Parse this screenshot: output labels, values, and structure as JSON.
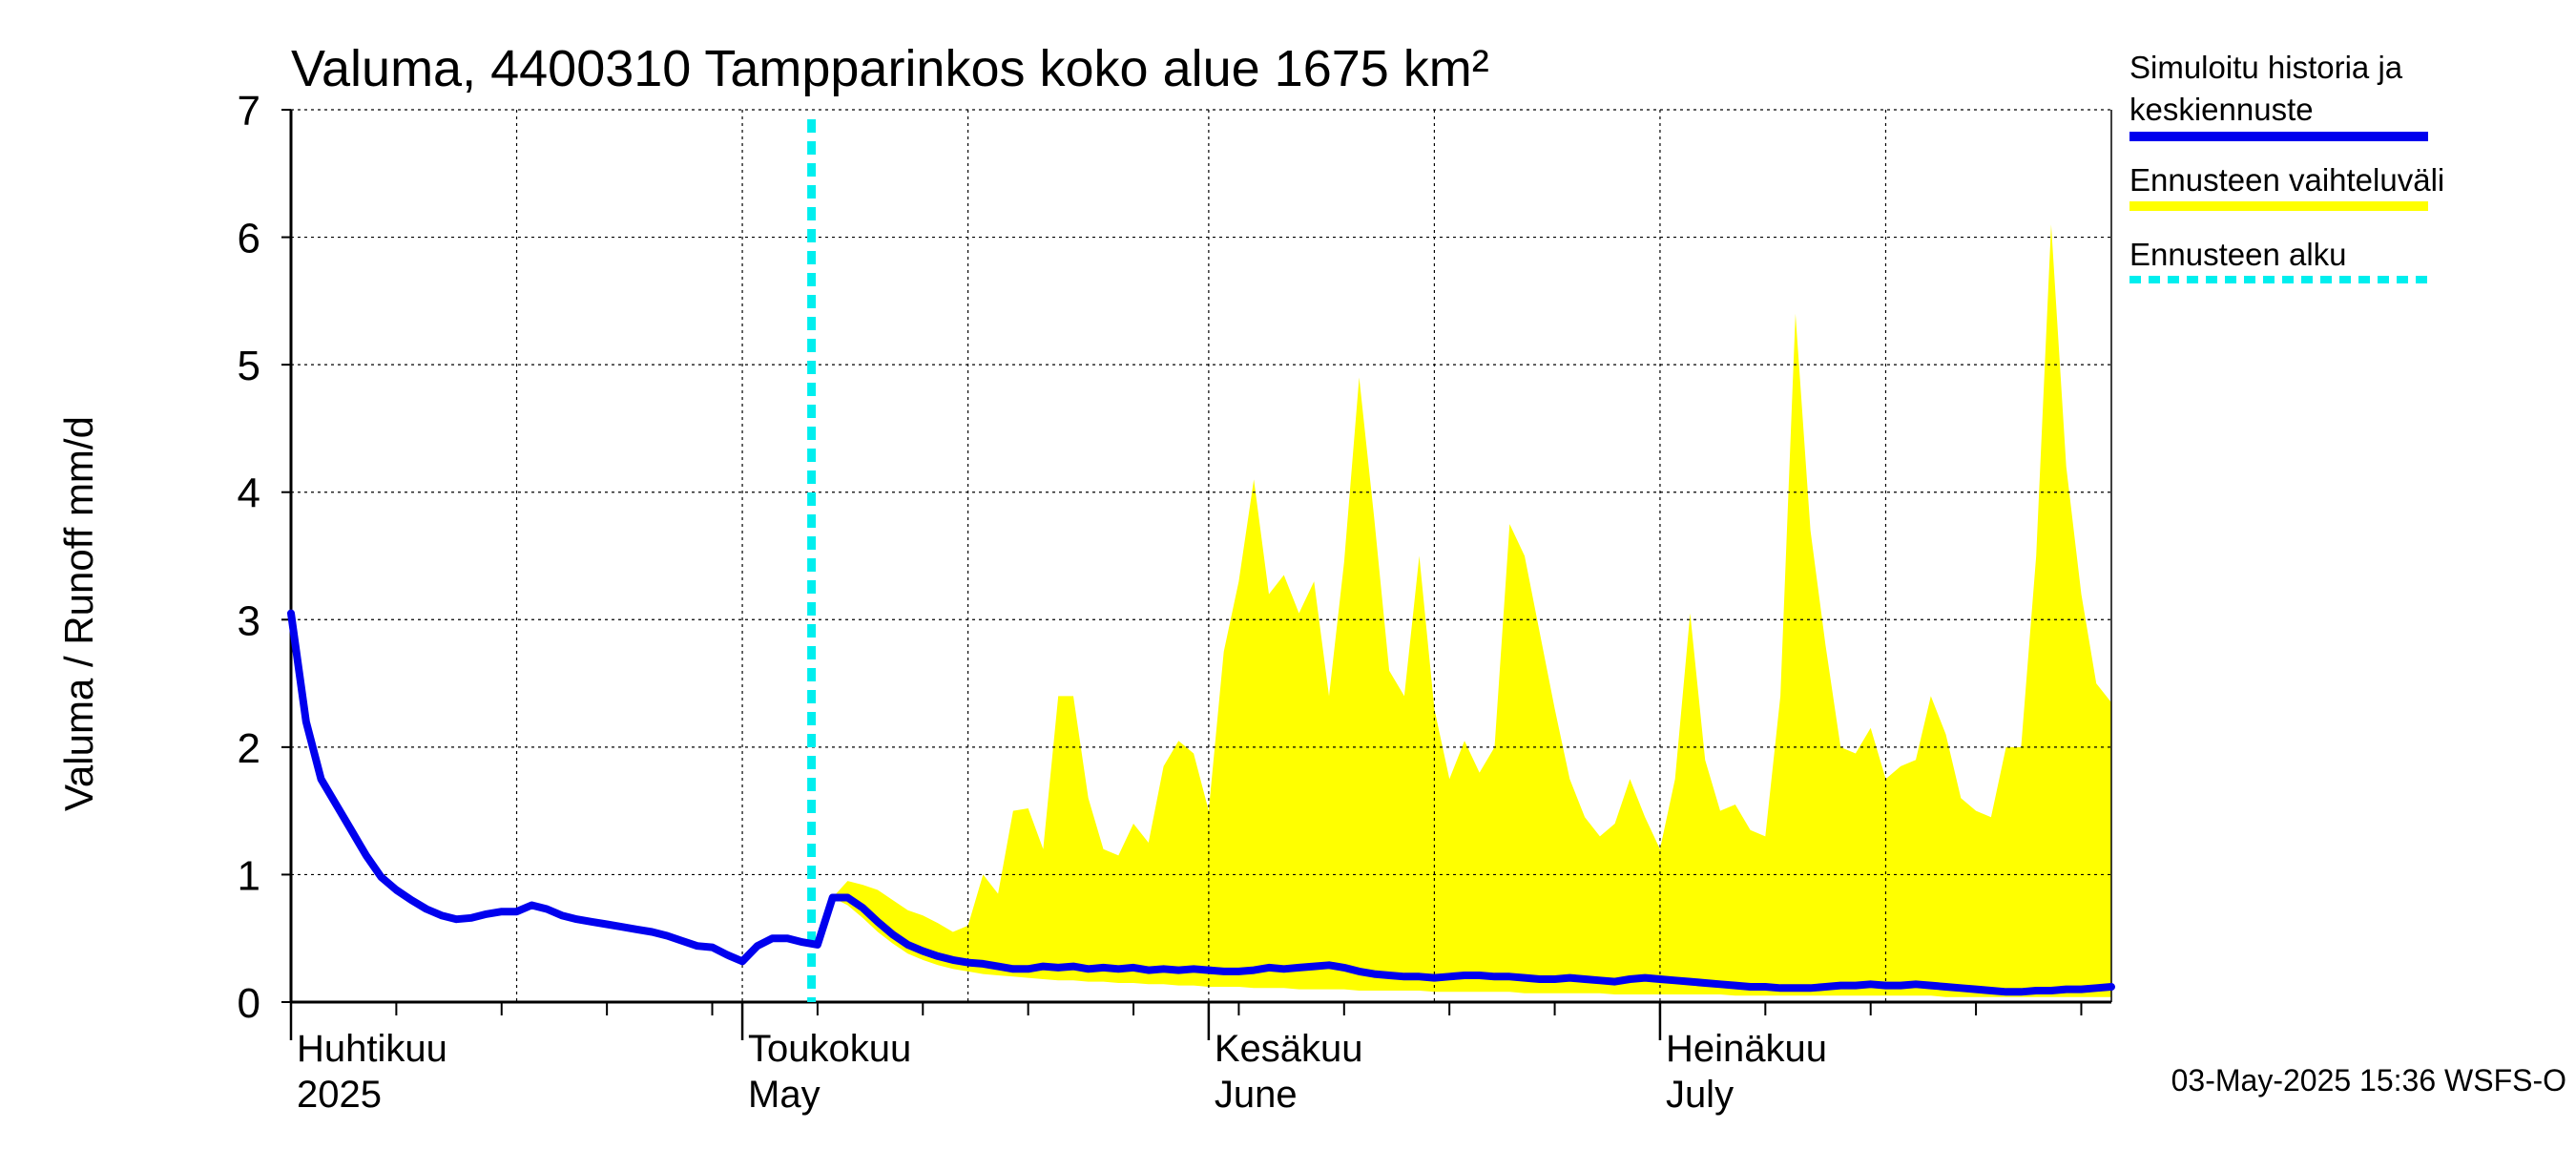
{
  "chart_data": {
    "type": "area",
    "title": "Valuma, 4400310 Tampparinkos koko alue 1675 km²",
    "ylabel": "Valuma / Runoff    mm/d",
    "ylim": [
      0,
      7
    ],
    "y_ticks": [
      0,
      1,
      2,
      3,
      4,
      5,
      6,
      7
    ],
    "x_range": [
      "2025-04-01",
      "2025-07-31"
    ],
    "grid": true,
    "legend_position": "right",
    "month_labels": [
      {
        "fi": "Huhtikuu",
        "en": "2025",
        "start": "2025-04-01"
      },
      {
        "fi": "Toukokuu",
        "en": "May",
        "start": "2025-05-01"
      },
      {
        "fi": "Kesäkuu",
        "en": "June",
        "start": "2025-06-01"
      },
      {
        "fi": "Heinäkuu",
        "en": "July",
        "start": "2025-07-01"
      }
    ],
    "forecast_start": "2025-05-03",
    "series": [
      {
        "name": "Simuloitu historia ja keskiennuste",
        "color": "#0000ee",
        "points": [
          [
            "2025-04-01",
            3.05
          ],
          [
            "2025-04-02",
            2.2
          ],
          [
            "2025-04-03",
            1.75
          ],
          [
            "2025-04-04",
            1.55
          ],
          [
            "2025-04-05",
            1.35
          ],
          [
            "2025-04-06",
            1.15
          ],
          [
            "2025-04-07",
            0.98
          ],
          [
            "2025-04-08",
            0.88
          ],
          [
            "2025-04-09",
            0.8
          ],
          [
            "2025-04-10",
            0.73
          ],
          [
            "2025-04-11",
            0.68
          ],
          [
            "2025-04-12",
            0.65
          ],
          [
            "2025-04-13",
            0.66
          ],
          [
            "2025-04-14",
            0.69
          ],
          [
            "2025-04-15",
            0.71
          ],
          [
            "2025-04-16",
            0.71
          ],
          [
            "2025-04-17",
            0.76
          ],
          [
            "2025-04-18",
            0.73
          ],
          [
            "2025-04-19",
            0.68
          ],
          [
            "2025-04-20",
            0.65
          ],
          [
            "2025-04-21",
            0.63
          ],
          [
            "2025-04-22",
            0.61
          ],
          [
            "2025-04-23",
            0.59
          ],
          [
            "2025-04-24",
            0.57
          ],
          [
            "2025-04-25",
            0.55
          ],
          [
            "2025-04-26",
            0.52
          ],
          [
            "2025-04-27",
            0.48
          ],
          [
            "2025-04-28",
            0.44
          ],
          [
            "2025-04-29",
            0.43
          ],
          [
            "2025-04-30",
            0.37
          ],
          [
            "2025-05-01",
            0.32
          ],
          [
            "2025-05-02",
            0.44
          ],
          [
            "2025-05-03",
            0.5
          ],
          [
            "2025-05-04",
            0.5
          ],
          [
            "2025-05-05",
            0.47
          ],
          [
            "2025-05-06",
            0.45
          ],
          [
            "2025-05-07",
            0.82
          ],
          [
            "2025-05-08",
            0.82
          ],
          [
            "2025-05-09",
            0.74
          ],
          [
            "2025-05-10",
            0.63
          ],
          [
            "2025-05-11",
            0.53
          ],
          [
            "2025-05-12",
            0.45
          ],
          [
            "2025-05-13",
            0.4
          ],
          [
            "2025-05-14",
            0.36
          ],
          [
            "2025-05-15",
            0.33
          ],
          [
            "2025-05-16",
            0.31
          ],
          [
            "2025-05-17",
            0.3
          ],
          [
            "2025-05-18",
            0.28
          ],
          [
            "2025-05-19",
            0.26
          ],
          [
            "2025-05-20",
            0.26
          ],
          [
            "2025-05-21",
            0.28
          ],
          [
            "2025-05-22",
            0.27
          ],
          [
            "2025-05-23",
            0.28
          ],
          [
            "2025-05-24",
            0.26
          ],
          [
            "2025-05-25",
            0.27
          ],
          [
            "2025-05-26",
            0.26
          ],
          [
            "2025-05-27",
            0.27
          ],
          [
            "2025-05-28",
            0.25
          ],
          [
            "2025-05-29",
            0.26
          ],
          [
            "2025-05-30",
            0.25
          ],
          [
            "2025-05-31",
            0.26
          ],
          [
            "2025-06-01",
            0.25
          ],
          [
            "2025-06-02",
            0.24
          ],
          [
            "2025-06-03",
            0.24
          ],
          [
            "2025-06-04",
            0.25
          ],
          [
            "2025-06-05",
            0.27
          ],
          [
            "2025-06-06",
            0.26
          ],
          [
            "2025-06-07",
            0.27
          ],
          [
            "2025-06-08",
            0.28
          ],
          [
            "2025-06-09",
            0.29
          ],
          [
            "2025-06-10",
            0.27
          ],
          [
            "2025-06-11",
            0.24
          ],
          [
            "2025-06-12",
            0.22
          ],
          [
            "2025-06-13",
            0.21
          ],
          [
            "2025-06-14",
            0.2
          ],
          [
            "2025-06-15",
            0.2
          ],
          [
            "2025-06-16",
            0.19
          ],
          [
            "2025-06-17",
            0.2
          ],
          [
            "2025-06-18",
            0.21
          ],
          [
            "2025-06-19",
            0.21
          ],
          [
            "2025-06-20",
            0.2
          ],
          [
            "2025-06-21",
            0.2
          ],
          [
            "2025-06-22",
            0.19
          ],
          [
            "2025-06-23",
            0.18
          ],
          [
            "2025-06-24",
            0.18
          ],
          [
            "2025-06-25",
            0.19
          ],
          [
            "2025-06-26",
            0.18
          ],
          [
            "2025-06-27",
            0.17
          ],
          [
            "2025-06-28",
            0.16
          ],
          [
            "2025-06-29",
            0.18
          ],
          [
            "2025-06-30",
            0.19
          ],
          [
            "2025-07-01",
            0.18
          ],
          [
            "2025-07-02",
            0.17
          ],
          [
            "2025-07-03",
            0.16
          ],
          [
            "2025-07-04",
            0.15
          ],
          [
            "2025-07-05",
            0.14
          ],
          [
            "2025-07-06",
            0.13
          ],
          [
            "2025-07-07",
            0.12
          ],
          [
            "2025-07-08",
            0.12
          ],
          [
            "2025-07-09",
            0.11
          ],
          [
            "2025-07-10",
            0.11
          ],
          [
            "2025-07-11",
            0.11
          ],
          [
            "2025-07-12",
            0.12
          ],
          [
            "2025-07-13",
            0.13
          ],
          [
            "2025-07-14",
            0.13
          ],
          [
            "2025-07-15",
            0.14
          ],
          [
            "2025-07-16",
            0.13
          ],
          [
            "2025-07-17",
            0.13
          ],
          [
            "2025-07-18",
            0.14
          ],
          [
            "2025-07-19",
            0.13
          ],
          [
            "2025-07-20",
            0.12
          ],
          [
            "2025-07-21",
            0.11
          ],
          [
            "2025-07-22",
            0.1
          ],
          [
            "2025-07-23",
            0.09
          ],
          [
            "2025-07-24",
            0.08
          ],
          [
            "2025-07-25",
            0.08
          ],
          [
            "2025-07-26",
            0.09
          ],
          [
            "2025-07-27",
            0.09
          ],
          [
            "2025-07-28",
            0.1
          ],
          [
            "2025-07-29",
            0.1
          ],
          [
            "2025-07-30",
            0.11
          ],
          [
            "2025-07-31",
            0.12
          ]
        ]
      },
      {
        "name": "Ennusteen vaihteluväli",
        "color": "#ffff00",
        "band": [
          [
            "2025-05-07",
            0.82,
            0.82
          ],
          [
            "2025-05-08",
            0.95,
            0.76
          ],
          [
            "2025-05-09",
            0.92,
            0.66
          ],
          [
            "2025-05-10",
            0.88,
            0.55
          ],
          [
            "2025-05-11",
            0.8,
            0.46
          ],
          [
            "2025-05-12",
            0.72,
            0.38
          ],
          [
            "2025-05-13",
            0.68,
            0.33
          ],
          [
            "2025-05-14",
            0.62,
            0.29
          ],
          [
            "2025-05-15",
            0.55,
            0.26
          ],
          [
            "2025-05-16",
            0.6,
            0.24
          ],
          [
            "2025-05-17",
            1.0,
            0.22
          ],
          [
            "2025-05-18",
            0.85,
            0.21
          ],
          [
            "2025-05-19",
            1.5,
            0.2
          ],
          [
            "2025-05-20",
            1.52,
            0.19
          ],
          [
            "2025-05-21",
            1.2,
            0.18
          ],
          [
            "2025-05-22",
            2.4,
            0.17
          ],
          [
            "2025-05-23",
            2.4,
            0.17
          ],
          [
            "2025-05-24",
            1.6,
            0.16
          ],
          [
            "2025-05-25",
            1.2,
            0.16
          ],
          [
            "2025-05-26",
            1.15,
            0.15
          ],
          [
            "2025-05-27",
            1.4,
            0.15
          ],
          [
            "2025-05-28",
            1.25,
            0.14
          ],
          [
            "2025-05-29",
            1.85,
            0.14
          ],
          [
            "2025-05-30",
            2.05,
            0.13
          ],
          [
            "2025-05-31",
            1.95,
            0.13
          ],
          [
            "2025-06-01",
            1.5,
            0.12
          ],
          [
            "2025-06-02",
            2.75,
            0.12
          ],
          [
            "2025-06-03",
            3.3,
            0.12
          ],
          [
            "2025-06-04",
            4.1,
            0.11
          ],
          [
            "2025-06-05",
            3.2,
            0.11
          ],
          [
            "2025-06-06",
            3.35,
            0.11
          ],
          [
            "2025-06-07",
            3.05,
            0.1
          ],
          [
            "2025-06-08",
            3.3,
            0.1
          ],
          [
            "2025-06-09",
            2.4,
            0.1
          ],
          [
            "2025-06-10",
            3.45,
            0.1
          ],
          [
            "2025-06-11",
            4.9,
            0.09
          ],
          [
            "2025-06-12",
            3.8,
            0.09
          ],
          [
            "2025-06-13",
            2.6,
            0.09
          ],
          [
            "2025-06-14",
            2.4,
            0.09
          ],
          [
            "2025-06-15",
            3.5,
            0.09
          ],
          [
            "2025-06-16",
            2.3,
            0.08
          ],
          [
            "2025-06-17",
            1.75,
            0.08
          ],
          [
            "2025-06-18",
            2.05,
            0.08
          ],
          [
            "2025-06-19",
            1.8,
            0.08
          ],
          [
            "2025-06-20",
            2.0,
            0.08
          ],
          [
            "2025-06-21",
            3.75,
            0.08
          ],
          [
            "2025-06-22",
            3.5,
            0.07
          ],
          [
            "2025-06-23",
            2.9,
            0.07
          ],
          [
            "2025-06-24",
            2.3,
            0.07
          ],
          [
            "2025-06-25",
            1.75,
            0.07
          ],
          [
            "2025-06-26",
            1.45,
            0.07
          ],
          [
            "2025-06-27",
            1.3,
            0.07
          ],
          [
            "2025-06-28",
            1.4,
            0.06
          ],
          [
            "2025-06-29",
            1.75,
            0.06
          ],
          [
            "2025-06-30",
            1.45,
            0.06
          ],
          [
            "2025-07-01",
            1.2,
            0.06
          ],
          [
            "2025-07-02",
            1.75,
            0.06
          ],
          [
            "2025-07-03",
            3.05,
            0.06
          ],
          [
            "2025-07-04",
            1.9,
            0.06
          ],
          [
            "2025-07-05",
            1.5,
            0.06
          ],
          [
            "2025-07-06",
            1.55,
            0.05
          ],
          [
            "2025-07-07",
            1.35,
            0.05
          ],
          [
            "2025-07-08",
            1.3,
            0.05
          ],
          [
            "2025-07-09",
            2.4,
            0.05
          ],
          [
            "2025-07-10",
            5.4,
            0.05
          ],
          [
            "2025-07-11",
            3.7,
            0.05
          ],
          [
            "2025-07-12",
            2.8,
            0.05
          ],
          [
            "2025-07-13",
            2.0,
            0.05
          ],
          [
            "2025-07-14",
            1.95,
            0.05
          ],
          [
            "2025-07-15",
            2.15,
            0.05
          ],
          [
            "2025-07-16",
            1.75,
            0.05
          ],
          [
            "2025-07-17",
            1.85,
            0.05
          ],
          [
            "2025-07-18",
            1.9,
            0.05
          ],
          [
            "2025-07-19",
            2.4,
            0.05
          ],
          [
            "2025-07-20",
            2.1,
            0.04
          ],
          [
            "2025-07-21",
            1.6,
            0.04
          ],
          [
            "2025-07-22",
            1.5,
            0.04
          ],
          [
            "2025-07-23",
            1.45,
            0.04
          ],
          [
            "2025-07-24",
            2.0,
            0.04
          ],
          [
            "2025-07-25",
            2.0,
            0.04
          ],
          [
            "2025-07-26",
            3.5,
            0.04
          ],
          [
            "2025-07-27",
            6.1,
            0.04
          ],
          [
            "2025-07-28",
            4.2,
            0.04
          ],
          [
            "2025-07-29",
            3.2,
            0.04
          ],
          [
            "2025-07-30",
            2.5,
            0.04
          ],
          [
            "2025-07-31",
            2.35,
            0.04
          ]
        ]
      },
      {
        "name": "Ennusteen alku",
        "color": "#00eeee",
        "x": "2025-05-03"
      }
    ]
  },
  "legend": {
    "items": [
      {
        "label_lines": [
          "Simuloitu historia ja",
          "keskiennuste"
        ],
        "color": "#0000ee",
        "style": "solid"
      },
      {
        "label_lines": [
          "Ennusteen vaihteluväli"
        ],
        "color": "#ffff00",
        "style": "solid"
      },
      {
        "label_lines": [
          "Ennusteen alku"
        ],
        "color": "#00eeee",
        "style": "dashed"
      }
    ]
  },
  "footer": "03-May-2025 15:36 WSFS-O"
}
